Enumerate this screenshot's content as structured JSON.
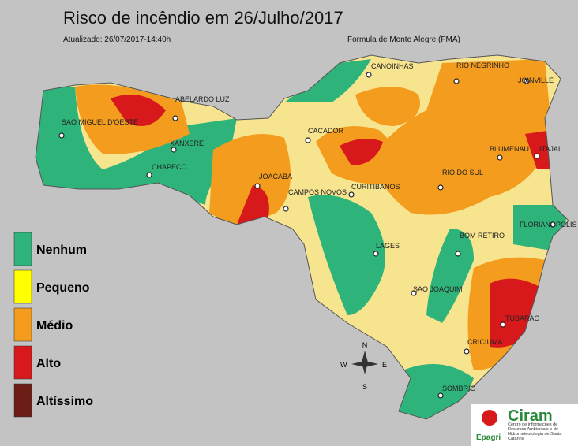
{
  "title": "Risco de incêndio em 26/Julho/2017",
  "updated": "Atualizado: 26/07/2017-14:40h",
  "formula": "Formula de Monte Alegre (FMA)",
  "legend": [
    {
      "label": "Nenhum",
      "color": "#2eb37a"
    },
    {
      "label": "Pequeno",
      "color": "#ffff00"
    },
    {
      "label": "Médio",
      "color": "#f39c1e"
    },
    {
      "label": "Alto",
      "color": "#d7191c"
    },
    {
      "label": "Altíssimo",
      "color": "#6b1d16"
    }
  ],
  "cities": [
    "CANOINHAS",
    "RIO NEGRINHO",
    "JOINVILLE",
    "ABELARDO LUZ",
    "SAO MIGUEL D'OESTE",
    "CACADOR",
    "XANXERE",
    "BLUMENAU",
    "ITAJAI",
    "CHAPECO",
    "JOACABA",
    "CAMPOS NOVOS",
    "CURITIBANOS",
    "RIO DO SUL",
    "FLORIANOPOLIS",
    "BOM RETIRO",
    "LAGES",
    "SAO JOAQUIM",
    "TUBARAO",
    "CRICIUMA",
    "SOMBRIO"
  ],
  "compass": {
    "n": "N",
    "s": "S",
    "e": "E",
    "w": "W"
  },
  "logo": {
    "name": "Ciram",
    "brand": "Epagri",
    "subtitle": "Centro de informações de Recursos Ambientais e de Hidrometeorologia de Santa Catarina"
  }
}
